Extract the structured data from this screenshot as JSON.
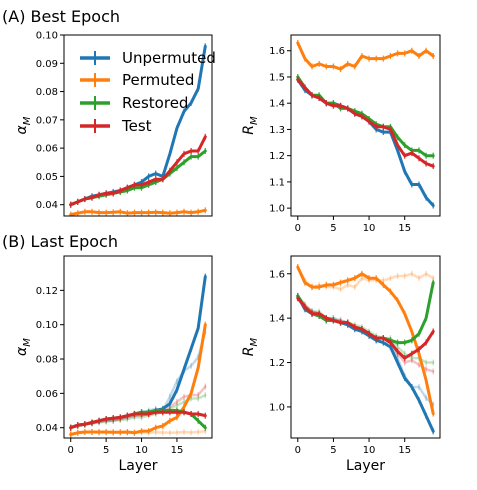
{
  "figure": {
    "title_a": "(A) Best Epoch",
    "title_b": "(B) Last Epoch"
  },
  "legend": [
    {
      "name": "Unpermuted",
      "color": "#1f77b4"
    },
    {
      "name": "Permuted",
      "color": "#ff7f0e"
    },
    {
      "name": "Restored",
      "color": "#2ca02c"
    },
    {
      "name": "Test",
      "color": "#d62728"
    }
  ],
  "chart_data": [
    {
      "type": "line",
      "panel": "A-left",
      "ylabel": "α_M",
      "xlabel": "",
      "x": [
        0,
        1,
        2,
        3,
        4,
        5,
        6,
        7,
        8,
        9,
        10,
        11,
        12,
        13,
        14,
        15,
        16,
        17,
        18,
        19
      ],
      "xticks": [],
      "ylim": [
        0.036,
        0.1
      ],
      "yticks": [
        0.04,
        0.05,
        0.06,
        0.07,
        0.08,
        0.09,
        0.1
      ],
      "ytick_labels": [
        "0.04",
        "0.05",
        "0.06",
        "0.07",
        "0.08",
        "0.09",
        "0.10"
      ],
      "series": [
        {
          "name": "Unpermuted",
          "color": "#1f77b4",
          "values": [
            0.04,
            0.041,
            0.042,
            0.043,
            0.0435,
            0.044,
            0.0445,
            0.045,
            0.046,
            0.047,
            0.048,
            0.05,
            0.051,
            0.05,
            0.058,
            0.067,
            0.073,
            0.076,
            0.081,
            0.096
          ]
        },
        {
          "name": "Permuted",
          "color": "#ff7f0e",
          "values": [
            0.0365,
            0.037,
            0.0375,
            0.0375,
            0.0372,
            0.0372,
            0.0373,
            0.0375,
            0.037,
            0.0372,
            0.0372,
            0.0372,
            0.0373,
            0.0372,
            0.037,
            0.0372,
            0.0375,
            0.0372,
            0.0375,
            0.038
          ]
        },
        {
          "name": "Restored",
          "color": "#2ca02c",
          "values": [
            0.04,
            0.041,
            0.042,
            0.0425,
            0.043,
            0.0435,
            0.044,
            0.0445,
            0.045,
            0.046,
            0.046,
            0.047,
            0.048,
            0.049,
            0.051,
            0.053,
            0.055,
            0.057,
            0.057,
            0.059
          ]
        },
        {
          "name": "Test",
          "color": "#d62728",
          "values": [
            0.04,
            0.041,
            0.042,
            0.0425,
            0.0435,
            0.044,
            0.044,
            0.045,
            0.046,
            0.047,
            0.047,
            0.048,
            0.049,
            0.049,
            0.052,
            0.055,
            0.058,
            0.059,
            0.059,
            0.064
          ]
        }
      ],
      "faded_series": []
    },
    {
      "type": "line",
      "panel": "A-right",
      "ylabel": "R_M",
      "xlabel": "",
      "x": [
        0,
        1,
        2,
        3,
        4,
        5,
        6,
        7,
        8,
        9,
        10,
        11,
        12,
        13,
        14,
        15,
        16,
        17,
        18,
        19
      ],
      "xticks": [
        0,
        5,
        10,
        15
      ],
      "ylim": [
        0.97,
        1.66
      ],
      "yticks": [
        1.0,
        1.1,
        1.2,
        1.3,
        1.4,
        1.5,
        1.6
      ],
      "ytick_labels": [
        "1.0",
        "1.1",
        "1.2",
        "1.3",
        "1.4",
        "1.5",
        "1.6"
      ],
      "series": [
        {
          "name": "Unpermuted",
          "color": "#1f77b4",
          "values": [
            1.49,
            1.45,
            1.43,
            1.42,
            1.4,
            1.4,
            1.39,
            1.38,
            1.36,
            1.35,
            1.33,
            1.3,
            1.29,
            1.29,
            1.22,
            1.14,
            1.09,
            1.09,
            1.04,
            1.01
          ]
        },
        {
          "name": "Permuted",
          "color": "#ff7f0e",
          "values": [
            1.63,
            1.57,
            1.54,
            1.55,
            1.54,
            1.54,
            1.53,
            1.55,
            1.54,
            1.58,
            1.57,
            1.57,
            1.57,
            1.58,
            1.59,
            1.59,
            1.6,
            1.58,
            1.6,
            1.58
          ]
        },
        {
          "name": "Restored",
          "color": "#2ca02c",
          "values": [
            1.5,
            1.46,
            1.43,
            1.43,
            1.4,
            1.4,
            1.38,
            1.38,
            1.37,
            1.36,
            1.34,
            1.32,
            1.31,
            1.31,
            1.27,
            1.24,
            1.22,
            1.22,
            1.2,
            1.2
          ]
        },
        {
          "name": "Test",
          "color": "#d62728",
          "values": [
            1.49,
            1.46,
            1.43,
            1.42,
            1.4,
            1.39,
            1.39,
            1.38,
            1.36,
            1.35,
            1.33,
            1.31,
            1.31,
            1.3,
            1.24,
            1.2,
            1.21,
            1.19,
            1.17,
            1.16
          ]
        }
      ],
      "faded_series": []
    },
    {
      "type": "line",
      "panel": "B-left",
      "ylabel": "α_M",
      "xlabel": "Layer",
      "x": [
        0,
        1,
        2,
        3,
        4,
        5,
        6,
        7,
        8,
        9,
        10,
        11,
        12,
        13,
        14,
        15,
        16,
        17,
        18,
        19
      ],
      "xticks": [
        0,
        5,
        10,
        15
      ],
      "ylim": [
        0.034,
        0.14
      ],
      "yticks": [
        0.04,
        0.06,
        0.08,
        0.1,
        0.12
      ],
      "ytick_labels": [
        "0.04",
        "0.06",
        "0.08",
        "0.10",
        "0.12"
      ],
      "series": [
        {
          "name": "Unpermuted",
          "color": "#1f77b4",
          "values": [
            0.04,
            0.0415,
            0.042,
            0.043,
            0.044,
            0.045,
            0.0455,
            0.046,
            0.047,
            0.048,
            0.049,
            0.049,
            0.05,
            0.051,
            0.054,
            0.062,
            0.074,
            0.086,
            0.098,
            0.128
          ]
        },
        {
          "name": "Permuted",
          "color": "#ff7f0e",
          "values": [
            0.036,
            0.037,
            0.0375,
            0.0375,
            0.0375,
            0.0375,
            0.0373,
            0.0373,
            0.0375,
            0.037,
            0.038,
            0.038,
            0.04,
            0.041,
            0.044,
            0.046,
            0.052,
            0.06,
            0.075,
            0.1
          ]
        },
        {
          "name": "Restored",
          "color": "#2ca02c",
          "values": [
            0.04,
            0.0415,
            0.042,
            0.043,
            0.044,
            0.045,
            0.0455,
            0.046,
            0.047,
            0.048,
            0.049,
            0.049,
            0.05,
            0.05,
            0.05,
            0.05,
            0.049,
            0.048,
            0.044,
            0.04
          ]
        },
        {
          "name": "Test",
          "color": "#d62728",
          "values": [
            0.04,
            0.0415,
            0.042,
            0.043,
            0.044,
            0.045,
            0.0455,
            0.046,
            0.047,
            0.048,
            0.048,
            0.048,
            0.049,
            0.049,
            0.049,
            0.049,
            0.049,
            0.048,
            0.048,
            0.047
          ]
        }
      ],
      "faded_series": [
        {
          "name": "Unpermuted",
          "color": "#1f77b4",
          "values": [
            0.04,
            0.041,
            0.042,
            0.043,
            0.0435,
            0.044,
            0.0445,
            0.045,
            0.046,
            0.047,
            0.048,
            0.05,
            0.051,
            0.05,
            0.058,
            0.067,
            0.073,
            0.076,
            0.081,
            0.096
          ]
        },
        {
          "name": "Permuted",
          "color": "#ff7f0e",
          "values": [
            0.0365,
            0.037,
            0.0375,
            0.0375,
            0.0372,
            0.0372,
            0.0373,
            0.0375,
            0.037,
            0.0372,
            0.0372,
            0.0372,
            0.0373,
            0.0372,
            0.037,
            0.0372,
            0.0375,
            0.0372,
            0.0375,
            0.038
          ]
        },
        {
          "name": "Restored",
          "color": "#2ca02c",
          "values": [
            0.04,
            0.041,
            0.042,
            0.0425,
            0.043,
            0.0435,
            0.044,
            0.0445,
            0.045,
            0.046,
            0.046,
            0.047,
            0.048,
            0.049,
            0.051,
            0.053,
            0.055,
            0.057,
            0.057,
            0.059
          ]
        },
        {
          "name": "Test",
          "color": "#d62728",
          "values": [
            0.04,
            0.041,
            0.042,
            0.0425,
            0.0435,
            0.044,
            0.044,
            0.045,
            0.046,
            0.047,
            0.047,
            0.048,
            0.049,
            0.049,
            0.052,
            0.055,
            0.058,
            0.059,
            0.059,
            0.064
          ]
        }
      ]
    },
    {
      "type": "line",
      "panel": "B-right",
      "ylabel": "R_M",
      "xlabel": "Layer",
      "x": [
        0,
        1,
        2,
        3,
        4,
        5,
        6,
        7,
        8,
        9,
        10,
        11,
        12,
        13,
        14,
        15,
        16,
        17,
        18,
        19
      ],
      "xticks": [
        0,
        5,
        10,
        15
      ],
      "ylim": [
        0.86,
        1.68
      ],
      "yticks": [
        1.0,
        1.2,
        1.4,
        1.6
      ],
      "ytick_labels": [
        "1.0",
        "1.2",
        "1.4",
        "1.6"
      ],
      "series": [
        {
          "name": "Unpermuted",
          "color": "#1f77b4",
          "values": [
            1.5,
            1.44,
            1.42,
            1.41,
            1.39,
            1.39,
            1.38,
            1.37,
            1.35,
            1.34,
            1.32,
            1.3,
            1.29,
            1.27,
            1.2,
            1.13,
            1.09,
            1.03,
            0.96,
            0.89
          ]
        },
        {
          "name": "Permuted",
          "color": "#ff7f0e",
          "values": [
            1.63,
            1.56,
            1.54,
            1.54,
            1.55,
            1.55,
            1.56,
            1.57,
            1.58,
            1.6,
            1.58,
            1.58,
            1.55,
            1.52,
            1.48,
            1.42,
            1.34,
            1.24,
            1.12,
            0.97
          ]
        },
        {
          "name": "Restored",
          "color": "#2ca02c",
          "values": [
            1.5,
            1.45,
            1.42,
            1.41,
            1.39,
            1.39,
            1.38,
            1.38,
            1.36,
            1.35,
            1.33,
            1.31,
            1.31,
            1.3,
            1.29,
            1.29,
            1.3,
            1.33,
            1.4,
            1.56
          ]
        },
        {
          "name": "Test",
          "color": "#d62728",
          "values": [
            1.49,
            1.45,
            1.42,
            1.42,
            1.4,
            1.39,
            1.38,
            1.38,
            1.36,
            1.35,
            1.33,
            1.31,
            1.31,
            1.29,
            1.25,
            1.22,
            1.24,
            1.26,
            1.29,
            1.34
          ]
        }
      ],
      "faded_series": [
        {
          "name": "Unpermuted",
          "color": "#1f77b4",
          "values": [
            1.49,
            1.45,
            1.43,
            1.42,
            1.4,
            1.4,
            1.39,
            1.38,
            1.36,
            1.35,
            1.33,
            1.3,
            1.29,
            1.29,
            1.22,
            1.14,
            1.09,
            1.09,
            1.04,
            1.01
          ]
        },
        {
          "name": "Permuted",
          "color": "#ff7f0e",
          "values": [
            1.63,
            1.57,
            1.54,
            1.55,
            1.54,
            1.54,
            1.53,
            1.55,
            1.54,
            1.58,
            1.57,
            1.57,
            1.57,
            1.58,
            1.59,
            1.59,
            1.6,
            1.58,
            1.6,
            1.58
          ]
        },
        {
          "name": "Restored",
          "color": "#2ca02c",
          "values": [
            1.5,
            1.46,
            1.43,
            1.43,
            1.4,
            1.4,
            1.38,
            1.38,
            1.37,
            1.36,
            1.34,
            1.32,
            1.31,
            1.31,
            1.27,
            1.24,
            1.22,
            1.22,
            1.2,
            1.2
          ]
        },
        {
          "name": "Test",
          "color": "#d62728",
          "values": [
            1.49,
            1.46,
            1.43,
            1.42,
            1.4,
            1.39,
            1.39,
            1.38,
            1.36,
            1.35,
            1.33,
            1.31,
            1.31,
            1.3,
            1.24,
            1.2,
            1.21,
            1.19,
            1.17,
            1.16
          ]
        }
      ]
    }
  ]
}
